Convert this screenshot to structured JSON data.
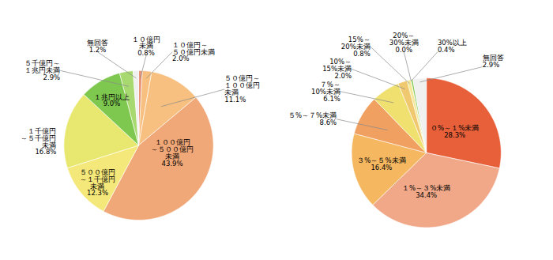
{
  "chart_data": [
    {
      "type": "pie",
      "categories": [
        "１０億円\n未満",
        "１０億円～\n５０億円未満",
        "５０億円～\n１００億円\n未満",
        "１００億円\n～５００億円\n未満",
        "５００億円\n～１千億円\n未満",
        "１千億円\n～５千億円\n未満",
        "１兆円以上",
        "５千億円～\n１兆円未満",
        "無回答"
      ],
      "values": [
        0.8,
        2.0,
        11.1,
        43.9,
        12.3,
        16.8,
        9.0,
        2.9,
        1.2
      ],
      "value_labels": [
        "0.8%",
        "2.0%",
        "11.1%",
        "43.9%",
        "12.3%",
        "16.8%",
        "9.0%",
        "2.9%",
        "1.2%"
      ],
      "colors": [
        "#e8957a",
        "#f7c080",
        "#f7c080",
        "#f0a878",
        "#f5e87a",
        "#e8e870",
        "#7ec850",
        "#a8d870",
        "#f0f0f0"
      ],
      "data_labels": true
    },
    {
      "type": "pie",
      "categories": [
        "０%～１%未満",
        "１%～３%未満",
        "３%～５%未満",
        "５%～７%未満",
        "７%～\n10%未満",
        "10%～\n15%未満",
        "15%～\n20%未満",
        "20%～\n30%未満",
        "30%以上",
        "無回答"
      ],
      "values": [
        28.3,
        34.4,
        16.4,
        8.6,
        6.1,
        2.0,
        0.8,
        0.05,
        0.4,
        2.9
      ],
      "value_labels": [
        "28.3%",
        "34.4%",
        "16.4%",
        "8.6%",
        "6.1%",
        "2.0%",
        "0.8%",
        "0.0%",
        "0.4%",
        "2.9%"
      ],
      "colors": [
        "#e8603a",
        "#f0a888",
        "#f5b860",
        "#f0a060",
        "#f0e070",
        "#f0c870",
        "#f5e898",
        "#f5e898",
        "#7ec850",
        "#f0f0f0"
      ],
      "data_labels": true
    }
  ]
}
